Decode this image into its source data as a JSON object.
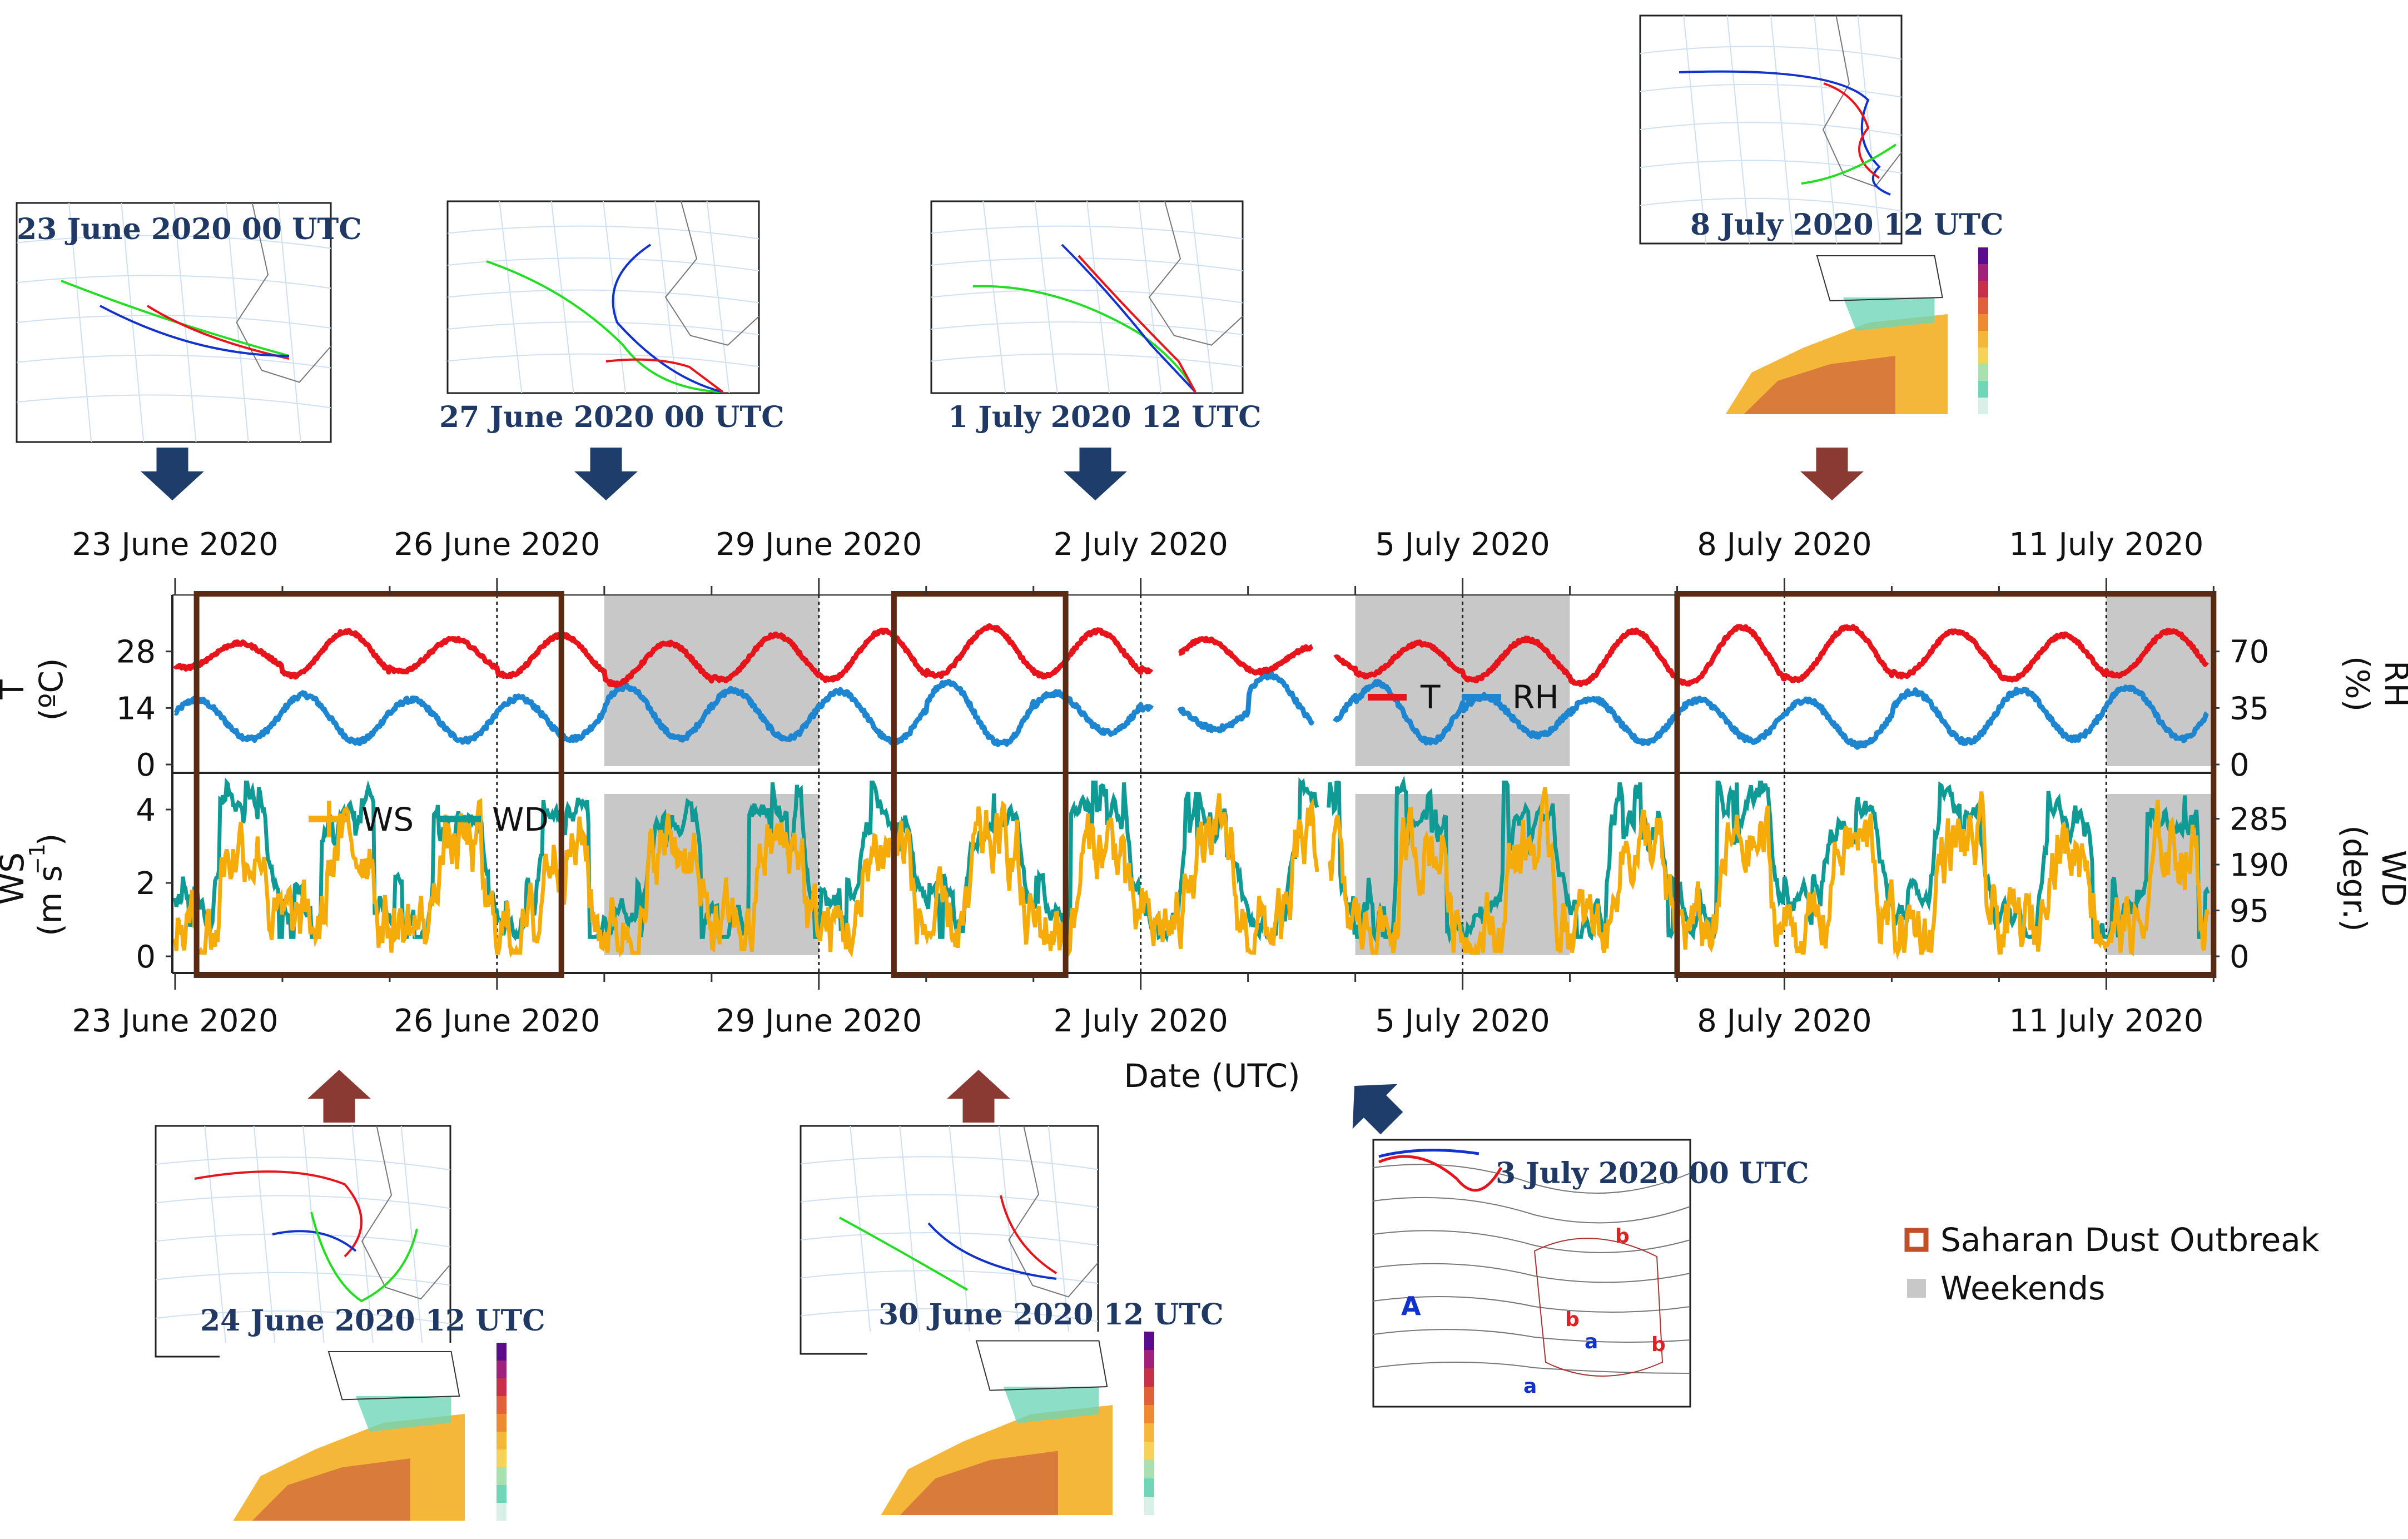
{
  "chart_data": [
    {
      "type": "line",
      "panel": "top",
      "title": "",
      "ylabel": "T (°C)",
      "y2label": "RH (%)",
      "xlabel": "",
      "x_range_days": [
        0,
        19.0
      ],
      "x_start": "23 June 2020",
      "date_ticks": [
        "23 June 2020",
        "26 June 2020",
        "29 June 2020",
        "2 July 2020",
        "5 July 2020",
        "8 July 2020",
        "11 July 2020"
      ],
      "ylim": [
        0,
        42
      ],
      "y_ticks": [
        "0",
        "14",
        "28"
      ],
      "y2lim": [
        0,
        105
      ],
      "y2_ticks": [
        "0",
        "35",
        "70"
      ],
      "series": [
        {
          "name": "T",
          "axis": "left",
          "color": "#e8141b",
          "daily_min": [
            24,
            22,
            23,
            22,
            20,
            21,
            21,
            22,
            22,
            23,
            23,
            22,
            21,
            20,
            20,
            21,
            22,
            21,
            22,
            22
          ],
          "daily_max": [
            30,
            33,
            31,
            32,
            30,
            32,
            33,
            34,
            33,
            31,
            29,
            30,
            31,
            33,
            34,
            34,
            33,
            32,
            33,
            32
          ]
        },
        {
          "name": "RH",
          "axis": "right",
          "color": "#1e86d0",
          "daily_min": [
            16,
            14,
            15,
            16,
            16,
            16,
            14,
            13,
            20,
            22,
            23,
            14,
            18,
            14,
            15,
            12,
            14,
            16,
            16,
            16
          ],
          "daily_max": [
            40,
            43,
            40,
            41,
            48,
            46,
            45,
            51,
            44,
            38,
            55,
            50,
            42,
            41,
            40,
            40,
            45,
            46,
            48,
            50
          ]
        }
      ],
      "gaps": [
        [
          9.1,
          9.35
        ],
        [
          10.6,
          10.8
        ]
      ],
      "legend": [
        "T",
        "RH"
      ]
    },
    {
      "type": "line",
      "panel": "bottom",
      "ylabel": "WS (m s⁻¹)",
      "y2label": "WD (degr.)",
      "xlabel": "Date (UTC)",
      "ylim": [
        0,
        5
      ],
      "y_ticks": [
        "0",
        "2",
        "4"
      ],
      "y2lim": [
        0,
        380
      ],
      "y2_ticks": [
        "0",
        "95",
        "190",
        "285"
      ],
      "series": [
        {
          "name": "WS",
          "axis": "left",
          "color": "#f5ac0a",
          "typical_range": [
            0.3,
            4.5
          ]
        },
        {
          "name": "WD",
          "axis": "right",
          "color": "#0f9a96",
          "typical_range": [
            40,
            360
          ]
        }
      ],
      "legend": [
        "WS",
        "WD"
      ]
    }
  ],
  "weekends_days": [
    [
      4,
      6
    ],
    [
      11,
      13
    ],
    [
      18,
      19
    ]
  ],
  "dust_outbreaks_days": [
    [
      0.2,
      3.6
    ],
    [
      6.7,
      8.3
    ],
    [
      14.0,
      19.0
    ]
  ],
  "labels": {
    "date_label": "Date (UTC)",
    "legend_dust": "Saharan Dust Outbreak",
    "legend_weekends": "Weekends",
    "ws_axis_ws": "WS",
    "ws_axis_unit": "(m s",
    "ws_axis_sup": "−1",
    "ws_axis_close": ")",
    "wd_axis_wd": "WD",
    "wd_axis_unit": "(degr.)",
    "t_axis_t": "T",
    "t_axis_unit": "(ºC)",
    "rh_axis_rh": "RH",
    "rh_axis_unit": "(%)"
  },
  "insets": [
    {
      "caption": "23 June 2020 00 UTC"
    },
    {
      "caption": "27 June 2020 00 UTC"
    },
    {
      "caption": "1 July 2020 12 UTC"
    },
    {
      "caption": "8 July 2020 12 UTC"
    },
    {
      "caption": "24 June 2020 12 UTC"
    },
    {
      "caption": "30 June 2020 12 UTC"
    },
    {
      "caption": "3 July 2020 00 UTC"
    }
  ],
  "colors": {
    "dust_box": "#5b2a12",
    "weekend": "#c8c8c8",
    "arrow_blue": "#1f3d6b",
    "arrow_red": "#8b3a33"
  }
}
